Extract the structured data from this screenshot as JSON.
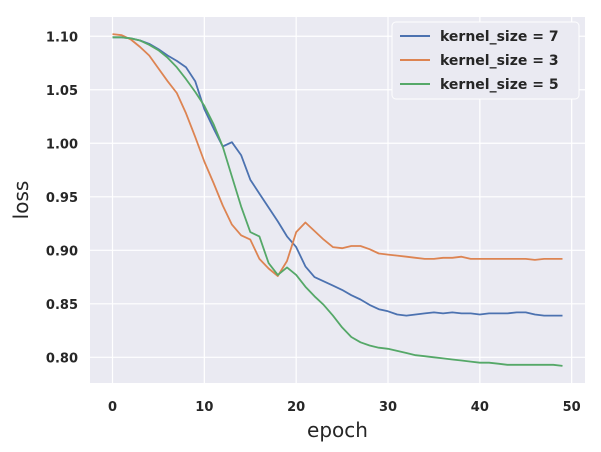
{
  "chart_data": {
    "type": "line",
    "title": "",
    "xlabel": "epoch",
    "ylabel": "loss",
    "xlim": [
      -2.45,
      51.45
    ],
    "ylim": [
      0.776,
      1.118
    ],
    "xticks": [
      0,
      10,
      20,
      30,
      40,
      50
    ],
    "yticks": [
      0.8,
      0.85,
      0.9,
      0.95,
      1.0,
      1.05,
      1.1
    ],
    "ytick_labels": [
      "0.80",
      "0.85",
      "0.90",
      "0.95",
      "1.00",
      "1.05",
      "1.10"
    ],
    "grid": true,
    "legend_position": "top-right",
    "series": [
      {
        "name": "kernel_size = 7",
        "color": "#4c72b0",
        "x": [
          0,
          1,
          2,
          3,
          4,
          5,
          6,
          7,
          8,
          9,
          10,
          11,
          12,
          13,
          14,
          15,
          16,
          17,
          18,
          19,
          20,
          21,
          22,
          23,
          24,
          25,
          26,
          27,
          28,
          29,
          30,
          31,
          32,
          33,
          34,
          35,
          36,
          37,
          38,
          39,
          40,
          41,
          42,
          43,
          44,
          45,
          46,
          47,
          48,
          49
        ],
        "y": [
          1.099,
          1.099,
          1.098,
          1.096,
          1.093,
          1.088,
          1.082,
          1.077,
          1.071,
          1.058,
          1.032,
          1.014,
          0.997,
          1.001,
          0.989,
          0.966,
          0.953,
          0.94,
          0.927,
          0.913,
          0.903,
          0.885,
          0.875,
          0.871,
          0.867,
          0.863,
          0.858,
          0.854,
          0.849,
          0.845,
          0.843,
          0.84,
          0.839,
          0.84,
          0.841,
          0.842,
          0.841,
          0.842,
          0.841,
          0.841,
          0.84,
          0.841,
          0.841,
          0.841,
          0.842,
          0.842,
          0.84,
          0.839,
          0.839,
          0.839
        ]
      },
      {
        "name": "kernel_size = 3",
        "color": "#dd8452",
        "x": [
          0,
          1,
          2,
          3,
          4,
          5,
          6,
          7,
          8,
          9,
          10,
          11,
          12,
          13,
          14,
          15,
          16,
          17,
          18,
          19,
          20,
          21,
          22,
          23,
          24,
          25,
          26,
          27,
          28,
          29,
          30,
          31,
          32,
          33,
          34,
          35,
          36,
          37,
          38,
          39,
          40,
          41,
          42,
          43,
          44,
          45,
          46,
          47,
          48,
          49
        ],
        "y": [
          1.102,
          1.101,
          1.097,
          1.09,
          1.082,
          1.07,
          1.058,
          1.047,
          1.028,
          1.006,
          0.983,
          0.963,
          0.942,
          0.924,
          0.914,
          0.91,
          0.892,
          0.883,
          0.876,
          0.89,
          0.917,
          0.926,
          0.918,
          0.91,
          0.903,
          0.902,
          0.904,
          0.904,
          0.901,
          0.897,
          0.896,
          0.895,
          0.894,
          0.893,
          0.892,
          0.892,
          0.893,
          0.893,
          0.894,
          0.892,
          0.892,
          0.892,
          0.892,
          0.892,
          0.892,
          0.892,
          0.891,
          0.892,
          0.892,
          0.892
        ]
      },
      {
        "name": "kernel_size = 5",
        "color": "#55a868",
        "x": [
          0,
          1,
          2,
          3,
          4,
          5,
          6,
          7,
          8,
          9,
          10,
          11,
          12,
          13,
          14,
          15,
          16,
          17,
          18,
          19,
          20,
          21,
          22,
          23,
          24,
          25,
          26,
          27,
          28,
          29,
          30,
          31,
          32,
          33,
          34,
          35,
          36,
          37,
          38,
          39,
          40,
          41,
          42,
          43,
          44,
          45,
          46,
          47,
          48,
          49
        ],
        "y": [
          1.099,
          1.099,
          1.098,
          1.096,
          1.092,
          1.087,
          1.08,
          1.071,
          1.06,
          1.048,
          1.035,
          1.018,
          0.997,
          0.969,
          0.941,
          0.917,
          0.913,
          0.888,
          0.877,
          0.884,
          0.877,
          0.866,
          0.857,
          0.849,
          0.839,
          0.828,
          0.819,
          0.814,
          0.811,
          0.809,
          0.808,
          0.806,
          0.804,
          0.802,
          0.801,
          0.8,
          0.799,
          0.798,
          0.797,
          0.796,
          0.795,
          0.795,
          0.794,
          0.793,
          0.793,
          0.793,
          0.793,
          0.793,
          0.793,
          0.792
        ]
      }
    ]
  }
}
